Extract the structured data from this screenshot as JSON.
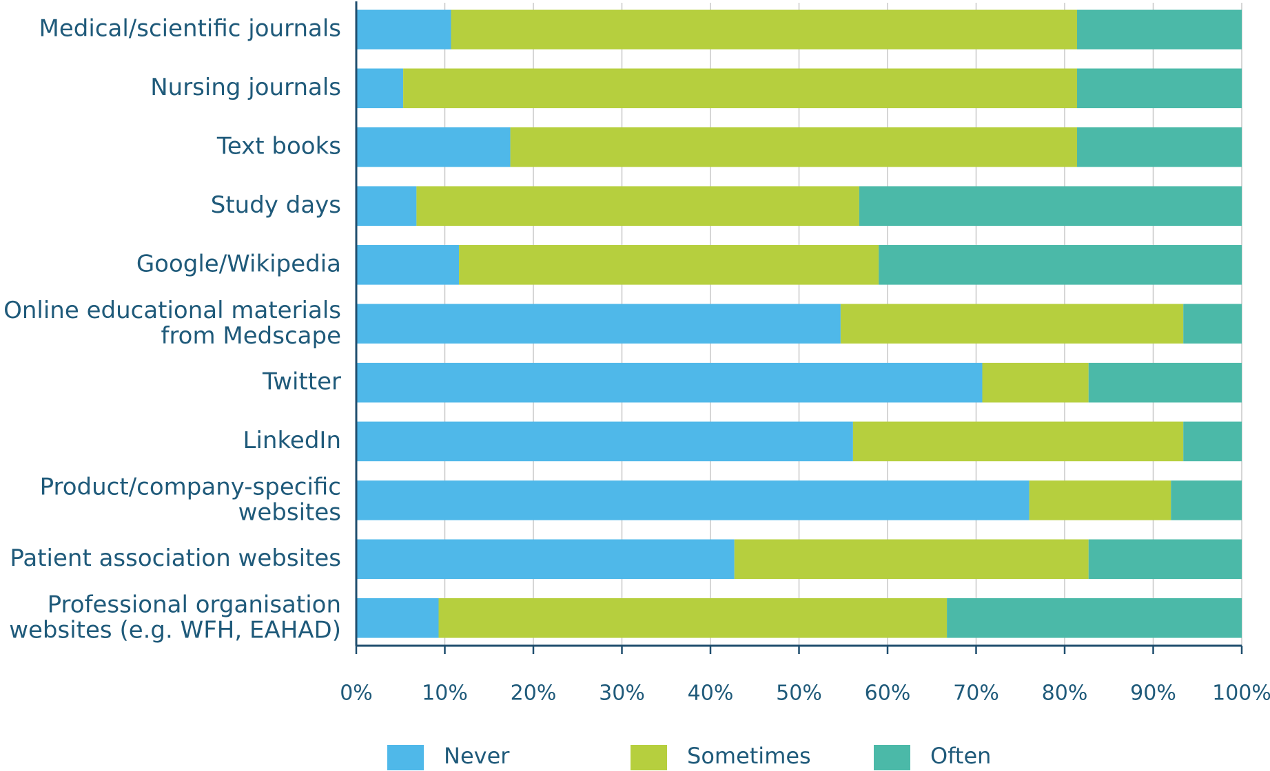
{
  "chart_data": {
    "type": "stacked-bar-horizontal",
    "categories": [
      "Medical/scientific journals",
      "Nursing journals",
      "Text books",
      "Study days",
      "Google/Wikipedia",
      "Online educational materials\nfrom Medscape",
      "Twitter",
      "LinkedIn",
      "Product/company-specific\nwebsites",
      "Patient association websites",
      "Professional organisation\nwebsites (e.g. WFH, EAHAD)"
    ],
    "series": [
      {
        "name": "Never",
        "color": "#4fb8e9",
        "values": [
          10.7,
          5.3,
          17.4,
          6.8,
          11.6,
          54.7,
          70.7,
          56.1,
          76.0,
          42.7,
          9.3
        ]
      },
      {
        "name": "Sometimes",
        "color": "#b6cf3e",
        "values": [
          70.7,
          76.1,
          64.0,
          50.0,
          47.4,
          38.7,
          12.0,
          37.3,
          16.0,
          40.0,
          57.4
        ]
      },
      {
        "name": "Often",
        "color": "#4bb9a8",
        "values": [
          18.6,
          18.6,
          18.6,
          43.2,
          41.0,
          6.6,
          17.3,
          6.6,
          8.0,
          17.3,
          33.3
        ]
      }
    ],
    "xlim": [
      0,
      100
    ],
    "xticks": [
      {
        "value": 0,
        "label": "0%"
      },
      {
        "value": 10,
        "label": "10%"
      },
      {
        "value": 20,
        "label": "20%"
      },
      {
        "value": 30,
        "label": "30%"
      },
      {
        "value": 40,
        "label": "40%"
      },
      {
        "value": 50,
        "label": "50%"
      },
      {
        "value": 60,
        "label": "60%"
      },
      {
        "value": 70,
        "label": "70%"
      },
      {
        "value": 80,
        "label": "80%"
      },
      {
        "value": 90,
        "label": "90%"
      },
      {
        "value": 100,
        "label": "100%"
      }
    ],
    "grid": true,
    "legend": "bottom"
  }
}
